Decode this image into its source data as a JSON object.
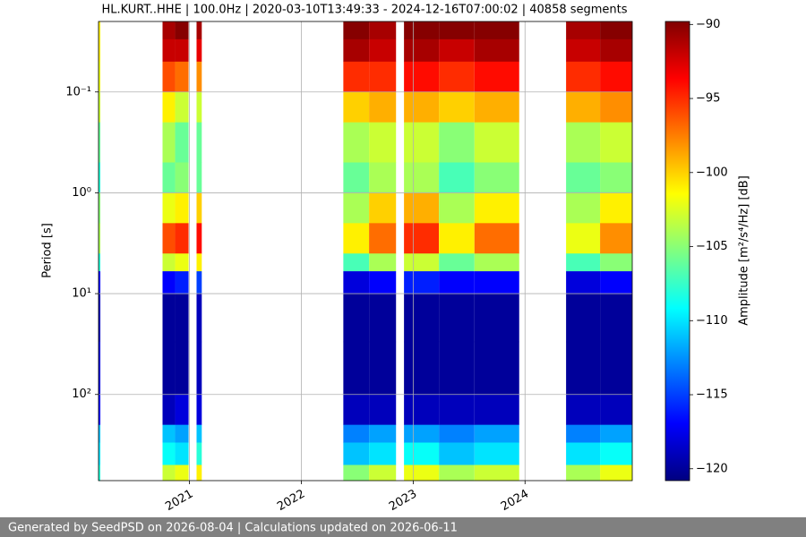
{
  "chart_data": {
    "type": "spectrogram",
    "title": "HL.KURT..HHE | 100.0Hz | 2020-03-10T13:49:33 - 2024-12-16T07:00:02 | 40858 segments",
    "ylabel": "Period [s]",
    "colorbar_label": "Amplitude [m²/s⁴/Hz] [dB]",
    "xlim": [
      "2020-03-10",
      "2024-12-16"
    ],
    "xticks": [
      {
        "value": "2021-01-01",
        "label": "2021"
      },
      {
        "value": "2022-01-01",
        "label": "2022"
      },
      {
        "value": "2023-01-01",
        "label": "2023"
      },
      {
        "value": "2024-01-01",
        "label": "2024"
      }
    ],
    "ylim": [
      0.02,
      715
    ],
    "yscale": "log",
    "y_inverted": true,
    "yticks": [
      {
        "value": 0.1,
        "label": "10⁻¹"
      },
      {
        "value": 1,
        "label": "10⁰"
      },
      {
        "value": 10,
        "label": "10¹"
      },
      {
        "value": 100,
        "label": "10²"
      }
    ],
    "grid": true,
    "colormap": "jet",
    "clim": [
      -120.8,
      -89.8
    ],
    "cticks": [
      {
        "value": -90,
        "label": "−90"
      },
      {
        "value": -95,
        "label": "−95"
      },
      {
        "value": -100,
        "label": "−100"
      },
      {
        "value": -105,
        "label": "−105"
      },
      {
        "value": -110,
        "label": "−110"
      },
      {
        "value": -115,
        "label": "−115"
      },
      {
        "value": -120,
        "label": "−120"
      }
    ],
    "period_edges": [
      0.02,
      0.03,
      0.05,
      0.1,
      0.2,
      0.5,
      1,
      2,
      4,
      6,
      10,
      30,
      100,
      200,
      300,
      500,
      715
    ],
    "segments": [
      {
        "start": "2020-03-10",
        "end": "2020-03-16",
        "values": [
          -101,
          -101,
          -102,
          -103,
          -106,
          -108,
          -105,
          -104,
          -108,
          -117,
          -119,
          -118,
          -117,
          -111,
          -110,
          -108
        ]
      },
      {
        "start": "2020-10-05",
        "end": "2020-11-15",
        "values": [
          -91,
          -92,
          -96,
          -101,
          -104,
          -106,
          -102,
          -96,
          -103,
          -117,
          -120,
          -120,
          -119,
          -111,
          -109,
          -103
        ]
      },
      {
        "start": "2020-11-15",
        "end": "2020-12-29",
        "values": [
          -90,
          -92,
          -97,
          -103,
          -106,
          -105,
          -101,
          -95,
          -102,
          -116,
          -120,
          -120,
          -118,
          -112,
          -110,
          -102
        ]
      },
      {
        "start": "2021-01-24",
        "end": "2021-02-10",
        "values": [
          -91,
          -93,
          -98,
          -103,
          -106,
          -106,
          -100,
          -94,
          -101,
          -115,
          -119,
          -119,
          -118,
          -111,
          -108,
          -101
        ]
      },
      {
        "start": "2022-05-18",
        "end": "2022-08-10",
        "values": [
          -90,
          -91,
          -95,
          -100,
          -104,
          -106,
          -104,
          -101,
          -107,
          -118,
          -120,
          -120,
          -119,
          -113,
          -111,
          -105
        ]
      },
      {
        "start": "2022-08-10",
        "end": "2022-11-06",
        "values": [
          -91,
          -92,
          -95,
          -99,
          -103,
          -104,
          -100,
          -97,
          -104,
          -117,
          -120,
          -120,
          -119,
          -112,
          -110,
          -103
        ]
      },
      {
        "start": "2022-12-02",
        "end": "2023-03-26",
        "values": [
          -90,
          -91,
          -94,
          -99,
          -103,
          -104,
          -99,
          -95,
          -103,
          -116,
          -120,
          -120,
          -119,
          -112,
          -109,
          -102
        ]
      },
      {
        "start": "2023-03-26",
        "end": "2023-07-20",
        "values": [
          -90,
          -92,
          -95,
          -100,
          -105,
          -107,
          -104,
          -101,
          -106,
          -117,
          -120,
          -120,
          -119,
          -113,
          -111,
          -104
        ]
      },
      {
        "start": "2023-07-20",
        "end": "2023-12-13",
        "values": [
          -90,
          -91,
          -94,
          -99,
          -103,
          -105,
          -101,
          -97,
          -104,
          -117,
          -120,
          -120,
          -119,
          -112,
          -110,
          -103
        ]
      },
      {
        "start": "2024-05-14",
        "end": "2024-09-02",
        "values": [
          -91,
          -92,
          -95,
          -99,
          -104,
          -106,
          -104,
          -102,
          -107,
          -118,
          -120,
          -120,
          -119,
          -113,
          -110,
          -104
        ]
      },
      {
        "start": "2024-09-02",
        "end": "2024-12-16",
        "values": [
          -90,
          -91,
          -94,
          -98,
          -103,
          -105,
          -101,
          -98,
          -105,
          -117,
          -120,
          -120,
          -119,
          -112,
          -109,
          -102
        ]
      }
    ]
  },
  "footer": "Generated by SeedPSD on 2026-08-04 | Calculations updated on 2026-06-11"
}
